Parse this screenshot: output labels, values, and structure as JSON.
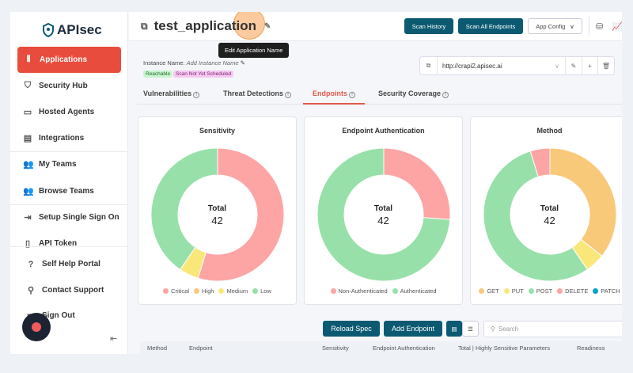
{
  "sidebar": {
    "logo": "APIsec",
    "items": [
      {
        "label": "Applications",
        "icon": "applications-icon",
        "glyph": "⫴"
      },
      {
        "label": "Security Hub",
        "icon": "shield-icon",
        "glyph": "⛉"
      },
      {
        "label": "Hosted Agents",
        "icon": "monitor-icon",
        "glyph": "▭"
      },
      {
        "label": "Integrations",
        "icon": "window-icon",
        "glyph": "▤"
      },
      {
        "label": "My Teams",
        "icon": "users-icon",
        "glyph": "👥"
      },
      {
        "label": "Browse Teams",
        "icon": "users-icon",
        "glyph": "👥"
      },
      {
        "label": "Setup Single Sign On",
        "icon": "sign-in-icon",
        "glyph": "⇥"
      },
      {
        "label": "API Token",
        "icon": "token-file-icon",
        "glyph": "▯"
      }
    ],
    "bottom": [
      {
        "label": "Self Help Portal",
        "glyph": "?"
      },
      {
        "label": "Contact Support",
        "glyph": "⚲"
      },
      {
        "label": "Sign Out",
        "glyph": "⇤"
      }
    ]
  },
  "header": {
    "title": "test_application",
    "tooltip": "Edit Application Name",
    "scan_history": "Scan History",
    "scan_all": "Scan All Endpoints",
    "app_config": "App Config"
  },
  "instance": {
    "label": "Instance Name:",
    "placeholder": "Add Instance Name",
    "badges": [
      "Reachable",
      "Scan Not Yet Scheduled"
    ],
    "url": "http://crapi2.apisec.ai"
  },
  "tabs": [
    "Vulnerabilities",
    "Threat Detections",
    "Endpoints",
    "Security Coverage"
  ],
  "charts": [
    {
      "title": "Sensitivity",
      "total_label": "Total",
      "total": "42",
      "segments": [
        {
          "label": "Critical",
          "value": 23,
          "color": "#fda4a4"
        },
        {
          "label": "High",
          "value": 0,
          "color": "#f9c97a"
        },
        {
          "label": "Medium",
          "value": 2,
          "color": "#f9e77a"
        },
        {
          "label": "Low",
          "value": 17,
          "color": "#98e0a9"
        }
      ]
    },
    {
      "title": "Endpoint Authentication",
      "total_label": "Total",
      "total": "42",
      "segments": [
        {
          "label": "Non-Authenticated",
          "value": 11,
          "color": "#fda4a4"
        },
        {
          "label": "Authenticated",
          "value": 31,
          "color": "#98e0a9"
        }
      ]
    },
    {
      "title": "Method",
      "total_label": "Total",
      "total": "42",
      "segments": [
        {
          "label": "GET",
          "value": 15,
          "color": "#f9c97a"
        },
        {
          "label": "PUT",
          "value": 2,
          "color": "#f9e77a"
        },
        {
          "label": "POST",
          "value": 23,
          "color": "#98e0a9"
        },
        {
          "label": "DELETE",
          "value": 2,
          "color": "#fda4a4"
        },
        {
          "label": "PATCH",
          "value": 0,
          "color": "#0aa0c8"
        }
      ]
    }
  ],
  "toolbar": {
    "reload": "Reload Spec",
    "add": "Add Endpoint",
    "search_placeholder": "Search"
  },
  "table": {
    "columns": [
      "Method",
      "Endpoint",
      "Sensitivity",
      "Endpoint Authentication",
      "Total | Highly Sensitive Parameters",
      "Readiness"
    ]
  }
}
